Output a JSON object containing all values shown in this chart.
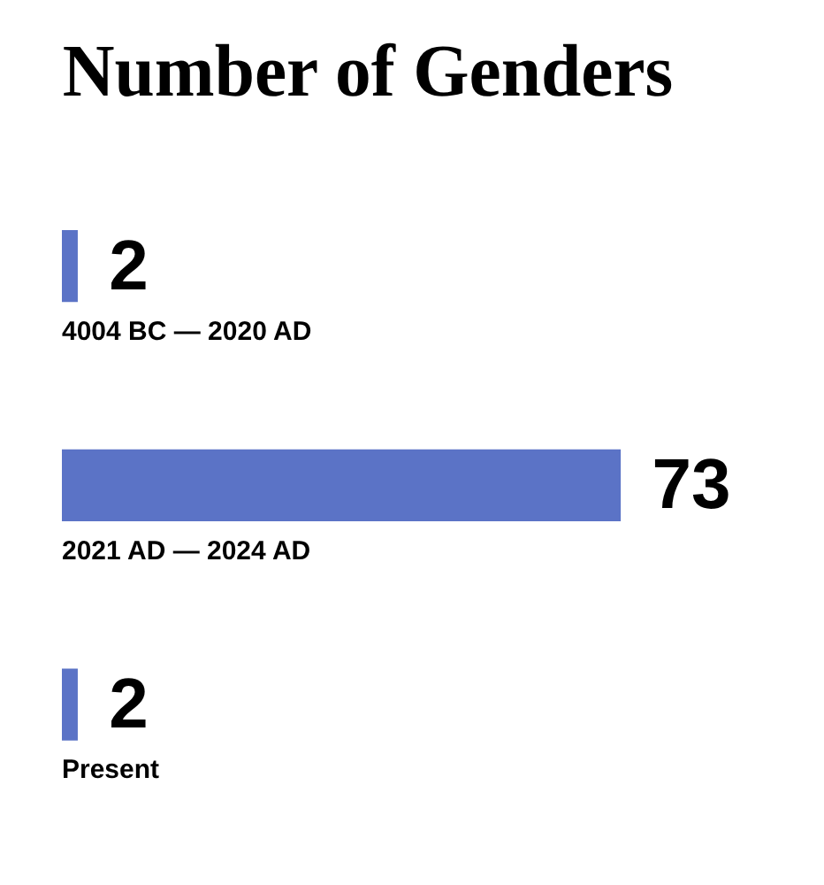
{
  "chart_data": {
    "type": "bar",
    "orientation": "horizontal",
    "title": "Number of Genders",
    "categories": [
      "4004 BC — 2020 AD",
      "2021 AD — 2024 AD",
      "Present"
    ],
    "values": [
      2,
      73,
      2
    ],
    "color": "#5b73c6",
    "data_labels": true,
    "tick_labels": false
  }
}
